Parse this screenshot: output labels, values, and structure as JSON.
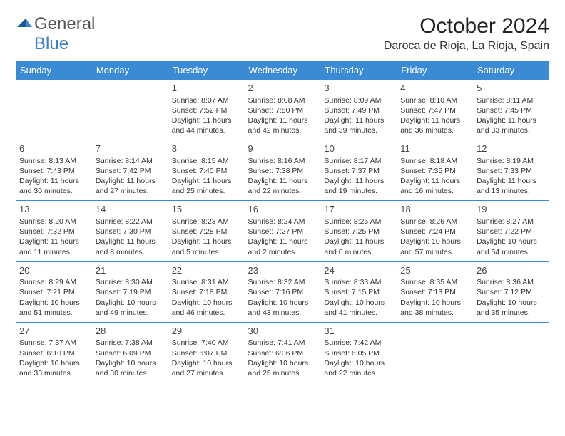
{
  "logo": {
    "text1": "General",
    "text2": "Blue"
  },
  "title": "October 2024",
  "location": "Daroca de Rioja, La Rioja, Spain",
  "colors": {
    "header_bg": "#3b8bd4",
    "header_fg": "#ffffff",
    "border": "#3b8bd4",
    "text": "#333333"
  },
  "dayNames": [
    "Sunday",
    "Monday",
    "Tuesday",
    "Wednesday",
    "Thursday",
    "Friday",
    "Saturday"
  ],
  "startOffset": 2,
  "days": [
    {
      "n": "1",
      "sr": "8:07 AM",
      "ss": "7:52 PM",
      "dl": "11 hours and 44 minutes."
    },
    {
      "n": "2",
      "sr": "8:08 AM",
      "ss": "7:50 PM",
      "dl": "11 hours and 42 minutes."
    },
    {
      "n": "3",
      "sr": "8:09 AM",
      "ss": "7:49 PM",
      "dl": "11 hours and 39 minutes."
    },
    {
      "n": "4",
      "sr": "8:10 AM",
      "ss": "7:47 PM",
      "dl": "11 hours and 36 minutes."
    },
    {
      "n": "5",
      "sr": "8:11 AM",
      "ss": "7:45 PM",
      "dl": "11 hours and 33 minutes."
    },
    {
      "n": "6",
      "sr": "8:13 AM",
      "ss": "7:43 PM",
      "dl": "11 hours and 30 minutes."
    },
    {
      "n": "7",
      "sr": "8:14 AM",
      "ss": "7:42 PM",
      "dl": "11 hours and 27 minutes."
    },
    {
      "n": "8",
      "sr": "8:15 AM",
      "ss": "7:40 PM",
      "dl": "11 hours and 25 minutes."
    },
    {
      "n": "9",
      "sr": "8:16 AM",
      "ss": "7:38 PM",
      "dl": "11 hours and 22 minutes."
    },
    {
      "n": "10",
      "sr": "8:17 AM",
      "ss": "7:37 PM",
      "dl": "11 hours and 19 minutes."
    },
    {
      "n": "11",
      "sr": "8:18 AM",
      "ss": "7:35 PM",
      "dl": "11 hours and 16 minutes."
    },
    {
      "n": "12",
      "sr": "8:19 AM",
      "ss": "7:33 PM",
      "dl": "11 hours and 13 minutes."
    },
    {
      "n": "13",
      "sr": "8:20 AM",
      "ss": "7:32 PM",
      "dl": "11 hours and 11 minutes."
    },
    {
      "n": "14",
      "sr": "8:22 AM",
      "ss": "7:30 PM",
      "dl": "11 hours and 8 minutes."
    },
    {
      "n": "15",
      "sr": "8:23 AM",
      "ss": "7:28 PM",
      "dl": "11 hours and 5 minutes."
    },
    {
      "n": "16",
      "sr": "8:24 AM",
      "ss": "7:27 PM",
      "dl": "11 hours and 2 minutes."
    },
    {
      "n": "17",
      "sr": "8:25 AM",
      "ss": "7:25 PM",
      "dl": "11 hours and 0 minutes."
    },
    {
      "n": "18",
      "sr": "8:26 AM",
      "ss": "7:24 PM",
      "dl": "10 hours and 57 minutes."
    },
    {
      "n": "19",
      "sr": "8:27 AM",
      "ss": "7:22 PM",
      "dl": "10 hours and 54 minutes."
    },
    {
      "n": "20",
      "sr": "8:29 AM",
      "ss": "7:21 PM",
      "dl": "10 hours and 51 minutes."
    },
    {
      "n": "21",
      "sr": "8:30 AM",
      "ss": "7:19 PM",
      "dl": "10 hours and 49 minutes."
    },
    {
      "n": "22",
      "sr": "8:31 AM",
      "ss": "7:18 PM",
      "dl": "10 hours and 46 minutes."
    },
    {
      "n": "23",
      "sr": "8:32 AM",
      "ss": "7:16 PM",
      "dl": "10 hours and 43 minutes."
    },
    {
      "n": "24",
      "sr": "8:33 AM",
      "ss": "7:15 PM",
      "dl": "10 hours and 41 minutes."
    },
    {
      "n": "25",
      "sr": "8:35 AM",
      "ss": "7:13 PM",
      "dl": "10 hours and 38 minutes."
    },
    {
      "n": "26",
      "sr": "8:36 AM",
      "ss": "7:12 PM",
      "dl": "10 hours and 35 minutes."
    },
    {
      "n": "27",
      "sr": "7:37 AM",
      "ss": "6:10 PM",
      "dl": "10 hours and 33 minutes."
    },
    {
      "n": "28",
      "sr": "7:38 AM",
      "ss": "6:09 PM",
      "dl": "10 hours and 30 minutes."
    },
    {
      "n": "29",
      "sr": "7:40 AM",
      "ss": "6:07 PM",
      "dl": "10 hours and 27 minutes."
    },
    {
      "n": "30",
      "sr": "7:41 AM",
      "ss": "6:06 PM",
      "dl": "10 hours and 25 minutes."
    },
    {
      "n": "31",
      "sr": "7:42 AM",
      "ss": "6:05 PM",
      "dl": "10 hours and 22 minutes."
    }
  ],
  "labels": {
    "sunrise": "Sunrise:",
    "sunset": "Sunset:",
    "daylight": "Daylight:"
  }
}
